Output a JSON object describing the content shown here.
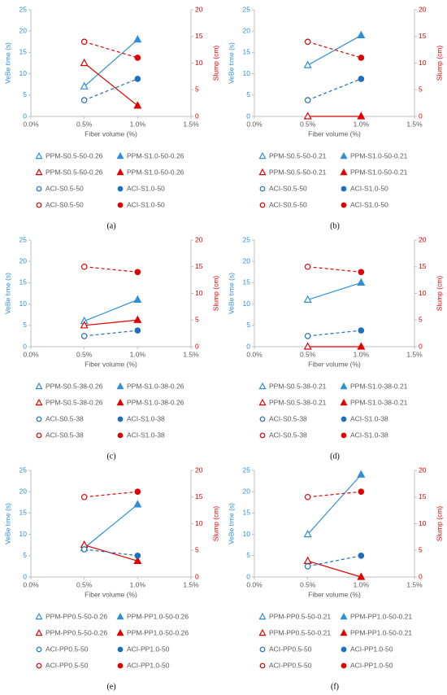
{
  "chart_data": [
    {
      "type": "line",
      "caption": "(a)",
      "xlabel": "Fiber volume (%)",
      "ylabel": "VeBe time (s)",
      "y2label": "Slump (cm)",
      "x": [
        0.5,
        1.0
      ],
      "xlim": [
        0,
        1.5
      ],
      "xticks": [
        {
          "value": 0,
          "label": "0.0%"
        },
        {
          "value": 0.5,
          "label": "0.5%"
        },
        {
          "value": 1,
          "label": "1.0%"
        },
        {
          "value": 1.5,
          "label": "1.5%"
        }
      ],
      "ylim": [
        0,
        25
      ],
      "yticks": [
        0,
        5,
        10,
        15,
        20,
        25
      ],
      "y2lim": [
        0,
        20
      ],
      "y2ticks": [
        0,
        5,
        10,
        15,
        20
      ],
      "series": [
        {
          "name": "PPM-S0.5-50-0.26",
          "color": "#2e8fd6",
          "marker": "triangle",
          "filled": false,
          "axis": "y",
          "dashed": false,
          "values": [
            7,
            null
          ]
        },
        {
          "name": "PPM-S1.0-50-0.26",
          "color": "#2e8fd6",
          "marker": "triangle",
          "filled": true,
          "axis": "y",
          "dashed": false,
          "values": [
            null,
            18
          ]
        },
        {
          "name": "PPM-S0.5-50-0.26",
          "color": "#e00000",
          "marker": "triangle",
          "filled": false,
          "axis": "y2",
          "dashed": false,
          "values": [
            10,
            null
          ]
        },
        {
          "name": "PPM-S1.0-50-0.26",
          "color": "#e00000",
          "marker": "triangle",
          "filled": true,
          "axis": "y2",
          "dashed": false,
          "values": [
            null,
            2
          ]
        },
        {
          "name": "ACI-S0.5-50",
          "color": "#1f6fbf",
          "marker": "circle",
          "filled": false,
          "axis": "y",
          "dashed": true,
          "values": [
            3.8,
            null
          ]
        },
        {
          "name": "ACI-S1.0-50",
          "color": "#1f6fbf",
          "marker": "circle",
          "filled": true,
          "axis": "y",
          "dashed": true,
          "values": [
            null,
            8.8
          ]
        },
        {
          "name": "ACI-S0.5-50",
          "color": "#e00000",
          "marker": "circle",
          "filled": false,
          "axis": "y2",
          "dashed": true,
          "values": [
            14,
            null
          ]
        },
        {
          "name": "ACI-S1.0-50",
          "color": "#e00000",
          "marker": "circle",
          "filled": true,
          "axis": "y2",
          "dashed": true,
          "values": [
            null,
            11
          ]
        }
      ]
    },
    {
      "type": "line",
      "caption": "(b)",
      "xlabel": "Fiber volume (%)",
      "ylabel": "VeBe time (s)",
      "y2label": "Slump (cm)",
      "x": [
        0.5,
        1.0
      ],
      "xlim": [
        0,
        1.5
      ],
      "xticks": [
        {
          "value": 0,
          "label": "0.0%"
        },
        {
          "value": 0.5,
          "label": "0.5%"
        },
        {
          "value": 1,
          "label": "1.0%"
        },
        {
          "value": 1.5,
          "label": "1.5%"
        }
      ],
      "ylim": [
        0,
        25
      ],
      "yticks": [
        0,
        5,
        10,
        15,
        20,
        25
      ],
      "y2lim": [
        0,
        20
      ],
      "y2ticks": [
        0,
        5,
        10,
        15,
        20
      ],
      "series": [
        {
          "name": "PPM-S0.5-50-0.21",
          "color": "#2e8fd6",
          "marker": "triangle",
          "filled": false,
          "axis": "y",
          "dashed": false,
          "values": [
            12,
            null
          ]
        },
        {
          "name": "PPM-S1.0-50-0.21",
          "color": "#2e8fd6",
          "marker": "triangle",
          "filled": true,
          "axis": "y",
          "dashed": false,
          "values": [
            null,
            19
          ]
        },
        {
          "name": "PPM-S0.5-50-0.21",
          "color": "#e00000",
          "marker": "triangle",
          "filled": false,
          "axis": "y2",
          "dashed": false,
          "values": [
            0,
            null
          ]
        },
        {
          "name": "PPM-S1.0-50-0.21",
          "color": "#e00000",
          "marker": "triangle",
          "filled": true,
          "axis": "y2",
          "dashed": false,
          "values": [
            null,
            0
          ]
        },
        {
          "name": "ACI-S0.5-50",
          "color": "#1f6fbf",
          "marker": "circle",
          "filled": false,
          "axis": "y",
          "dashed": true,
          "values": [
            3.8,
            null
          ]
        },
        {
          "name": "ACI-S1.0-50",
          "color": "#1f6fbf",
          "marker": "circle",
          "filled": true,
          "axis": "y",
          "dashed": true,
          "values": [
            null,
            8.8
          ]
        },
        {
          "name": "ACI-S0.5-50",
          "color": "#e00000",
          "marker": "circle",
          "filled": false,
          "axis": "y2",
          "dashed": true,
          "values": [
            14,
            null
          ]
        },
        {
          "name": "ACI-S1.0-50",
          "color": "#e00000",
          "marker": "circle",
          "filled": true,
          "axis": "y2",
          "dashed": true,
          "values": [
            null,
            11
          ]
        }
      ]
    },
    {
      "type": "line",
      "caption": "(c)",
      "xlabel": "Fiber volume (%)",
      "ylabel": "VeBe time (s)",
      "y2label": "Slump (cm)",
      "x": [
        0.5,
        1.0
      ],
      "xlim": [
        0,
        1.5
      ],
      "xticks": [
        {
          "value": 0,
          "label": "0.0%"
        },
        {
          "value": 0.5,
          "label": "0.5%"
        },
        {
          "value": 1,
          "label": "1.0%"
        },
        {
          "value": 1.5,
          "label": "1.5%"
        }
      ],
      "ylim": [
        0,
        25
      ],
      "yticks": [
        0,
        5,
        10,
        15,
        20,
        25
      ],
      "y2lim": [
        0,
        20
      ],
      "y2ticks": [
        0,
        5,
        10,
        15,
        20
      ],
      "series": [
        {
          "name": "PPM-S0.5-38-0.26",
          "color": "#2e8fd6",
          "marker": "triangle",
          "filled": false,
          "axis": "y",
          "dashed": false,
          "values": [
            6,
            null
          ]
        },
        {
          "name": "PPM-S1.0-38-0.26",
          "color": "#2e8fd6",
          "marker": "triangle",
          "filled": true,
          "axis": "y",
          "dashed": false,
          "values": [
            null,
            11
          ]
        },
        {
          "name": "PPM-S0.5-38-0.26",
          "color": "#e00000",
          "marker": "triangle",
          "filled": false,
          "axis": "y2",
          "dashed": false,
          "values": [
            4,
            null
          ]
        },
        {
          "name": "PPM-S1.0-38-0.26",
          "color": "#e00000",
          "marker": "triangle",
          "filled": true,
          "axis": "y2",
          "dashed": false,
          "values": [
            null,
            5
          ]
        },
        {
          "name": "ACI-S0.5-38",
          "color": "#1f6fbf",
          "marker": "circle",
          "filled": false,
          "axis": "y",
          "dashed": true,
          "values": [
            2.5,
            null
          ]
        },
        {
          "name": "ACI-S1.0-38",
          "color": "#1f6fbf",
          "marker": "circle",
          "filled": true,
          "axis": "y",
          "dashed": true,
          "values": [
            null,
            3.8
          ]
        },
        {
          "name": "ACI-S0.5-38",
          "color": "#e00000",
          "marker": "circle",
          "filled": false,
          "axis": "y2",
          "dashed": true,
          "values": [
            15,
            null
          ]
        },
        {
          "name": "ACI-S1.0-38",
          "color": "#e00000",
          "marker": "circle",
          "filled": true,
          "axis": "y2",
          "dashed": true,
          "values": [
            null,
            14
          ]
        }
      ]
    },
    {
      "type": "line",
      "caption": "(d)",
      "xlabel": "Fiber volume (%)",
      "ylabel": "VeBe time (s)",
      "y2label": "Slump (cm)",
      "x": [
        0.5,
        1.0
      ],
      "xlim": [
        0,
        1.5
      ],
      "xticks": [
        {
          "value": 0,
          "label": "0.0%"
        },
        {
          "value": 0.5,
          "label": "0.5%"
        },
        {
          "value": 1,
          "label": "1.0%"
        },
        {
          "value": 1.5,
          "label": "1.5%"
        }
      ],
      "ylim": [
        0,
        25
      ],
      "yticks": [
        0,
        5,
        10,
        15,
        20,
        25
      ],
      "y2lim": [
        0,
        20
      ],
      "y2ticks": [
        0,
        5,
        10,
        15,
        20
      ],
      "series": [
        {
          "name": "PPM-S0.5-38-0.21",
          "color": "#2e8fd6",
          "marker": "triangle",
          "filled": false,
          "axis": "y",
          "dashed": false,
          "values": [
            11,
            null
          ]
        },
        {
          "name": "PPM-S1.0-38-0.21",
          "color": "#2e8fd6",
          "marker": "triangle",
          "filled": true,
          "axis": "y",
          "dashed": false,
          "values": [
            null,
            15
          ]
        },
        {
          "name": "PPM-S0.5-38-0.21",
          "color": "#e00000",
          "marker": "triangle",
          "filled": false,
          "axis": "y2",
          "dashed": false,
          "values": [
            0,
            null
          ]
        },
        {
          "name": "PPM-S1.0-38-0.21",
          "color": "#e00000",
          "marker": "triangle",
          "filled": true,
          "axis": "y2",
          "dashed": false,
          "values": [
            null,
            0
          ]
        },
        {
          "name": "ACI-S0.5-38",
          "color": "#1f6fbf",
          "marker": "circle",
          "filled": false,
          "axis": "y",
          "dashed": true,
          "values": [
            2.5,
            null
          ]
        },
        {
          "name": "ACI-S1.0-38",
          "color": "#1f6fbf",
          "marker": "circle",
          "filled": true,
          "axis": "y",
          "dashed": true,
          "values": [
            null,
            3.8
          ]
        },
        {
          "name": "ACI-S0.5-38",
          "color": "#e00000",
          "marker": "circle",
          "filled": false,
          "axis": "y2",
          "dashed": true,
          "values": [
            15,
            null
          ]
        },
        {
          "name": "ACI-S1.0-38",
          "color": "#e00000",
          "marker": "circle",
          "filled": true,
          "axis": "y2",
          "dashed": true,
          "values": [
            null,
            14
          ]
        }
      ]
    },
    {
      "type": "line",
      "caption": "(e)",
      "xlabel": "Fiber volume (%)",
      "ylabel": "VeBe time (s)",
      "y2label": "Slump (cm)",
      "x": [
        0.5,
        1.0
      ],
      "xlim": [
        0,
        1.5
      ],
      "xticks": [
        {
          "value": 0,
          "label": "0.0%"
        },
        {
          "value": 0.5,
          "label": "0.5%"
        },
        {
          "value": 1,
          "label": "1.0%"
        },
        {
          "value": 1.5,
          "label": "1.5%"
        }
      ],
      "ylim": [
        0,
        25
      ],
      "yticks": [
        0,
        5,
        10,
        15,
        20,
        25
      ],
      "y2lim": [
        0,
        20
      ],
      "y2ticks": [
        0,
        5,
        10,
        15,
        20
      ],
      "series": [
        {
          "name": "PPM-PP0.5-50-0.26",
          "color": "#2e8fd6",
          "marker": "triangle",
          "filled": false,
          "axis": "y",
          "dashed": false,
          "values": [
            6.8,
            null
          ]
        },
        {
          "name": "PPM-PP1.0-50-0.26",
          "color": "#2e8fd6",
          "marker": "triangle",
          "filled": true,
          "axis": "y",
          "dashed": false,
          "values": [
            null,
            17
          ]
        },
        {
          "name": "PPM-PP0.5-50-0.26",
          "color": "#e00000",
          "marker": "triangle",
          "filled": false,
          "axis": "y2",
          "dashed": false,
          "values": [
            6,
            null
          ]
        },
        {
          "name": "PPM-PP1.0-50-0.26",
          "color": "#e00000",
          "marker": "triangle",
          "filled": true,
          "axis": "y2",
          "dashed": false,
          "values": [
            null,
            3
          ]
        },
        {
          "name": "ACI-PP0.5-50",
          "color": "#1f6fbf",
          "marker": "circle",
          "filled": false,
          "axis": "y",
          "dashed": true,
          "values": [
            6.5,
            null
          ]
        },
        {
          "name": "ACI-PP1.0-50",
          "color": "#1f6fbf",
          "marker": "circle",
          "filled": true,
          "axis": "y",
          "dashed": true,
          "values": [
            null,
            5
          ]
        },
        {
          "name": "ACI-PP0.5-50",
          "color": "#e00000",
          "marker": "circle",
          "filled": false,
          "axis": "y2",
          "dashed": true,
          "values": [
            15,
            null
          ]
        },
        {
          "name": "ACI-PP1.0-50",
          "color": "#e00000",
          "marker": "circle",
          "filled": true,
          "axis": "y2",
          "dashed": true,
          "values": [
            null,
            16
          ]
        }
      ]
    },
    {
      "type": "line",
      "caption": "(f)",
      "xlabel": "Fiber volume (%)",
      "ylabel": "VeBe time (s)",
      "y2label": "Slump (cm)",
      "x": [
        0.5,
        1.0
      ],
      "xlim": [
        0,
        1.5
      ],
      "xticks": [
        {
          "value": 0,
          "label": "0.0%"
        },
        {
          "value": 0.5,
          "label": "0.5%"
        },
        {
          "value": 1,
          "label": "1.0%"
        },
        {
          "value": 1.5,
          "label": "1.5%"
        }
      ],
      "ylim": [
        0,
        25
      ],
      "yticks": [
        0,
        5,
        10,
        15,
        20,
        25
      ],
      "y2lim": [
        0,
        20
      ],
      "y2ticks": [
        0,
        5,
        10,
        15,
        20
      ],
      "series": [
        {
          "name": "PPM-PP0.5-50-0.21",
          "color": "#2e8fd6",
          "marker": "triangle",
          "filled": false,
          "axis": "y",
          "dashed": false,
          "values": [
            10,
            null
          ]
        },
        {
          "name": "PPM-PP1.0-50-0.21",
          "color": "#2e8fd6",
          "marker": "triangle",
          "filled": true,
          "axis": "y",
          "dashed": false,
          "values": [
            null,
            24
          ]
        },
        {
          "name": "PPM-PP0.5-50-0.21",
          "color": "#e00000",
          "marker": "triangle",
          "filled": false,
          "axis": "y2",
          "dashed": false,
          "values": [
            3,
            null
          ]
        },
        {
          "name": "PPM-PP1.0-50-0.21",
          "color": "#e00000",
          "marker": "triangle",
          "filled": true,
          "axis": "y2",
          "dashed": false,
          "values": [
            null,
            0
          ]
        },
        {
          "name": "ACI-PP0.5-50",
          "color": "#1f6fbf",
          "marker": "circle",
          "filled": false,
          "axis": "y",
          "dashed": true,
          "values": [
            2.5,
            null
          ]
        },
        {
          "name": "ACI-PP1.0-50",
          "color": "#1f6fbf",
          "marker": "circle",
          "filled": true,
          "axis": "y",
          "dashed": true,
          "values": [
            null,
            5
          ]
        },
        {
          "name": "ACI-PP0.5-50",
          "color": "#e00000",
          "marker": "circle",
          "filled": false,
          "axis": "y2",
          "dashed": true,
          "values": [
            15,
            null
          ]
        },
        {
          "name": "ACI-PP1.0-50",
          "color": "#e00000",
          "marker": "circle",
          "filled": true,
          "axis": "y2",
          "dashed": true,
          "values": [
            null,
            16
          ]
        }
      ]
    }
  ]
}
